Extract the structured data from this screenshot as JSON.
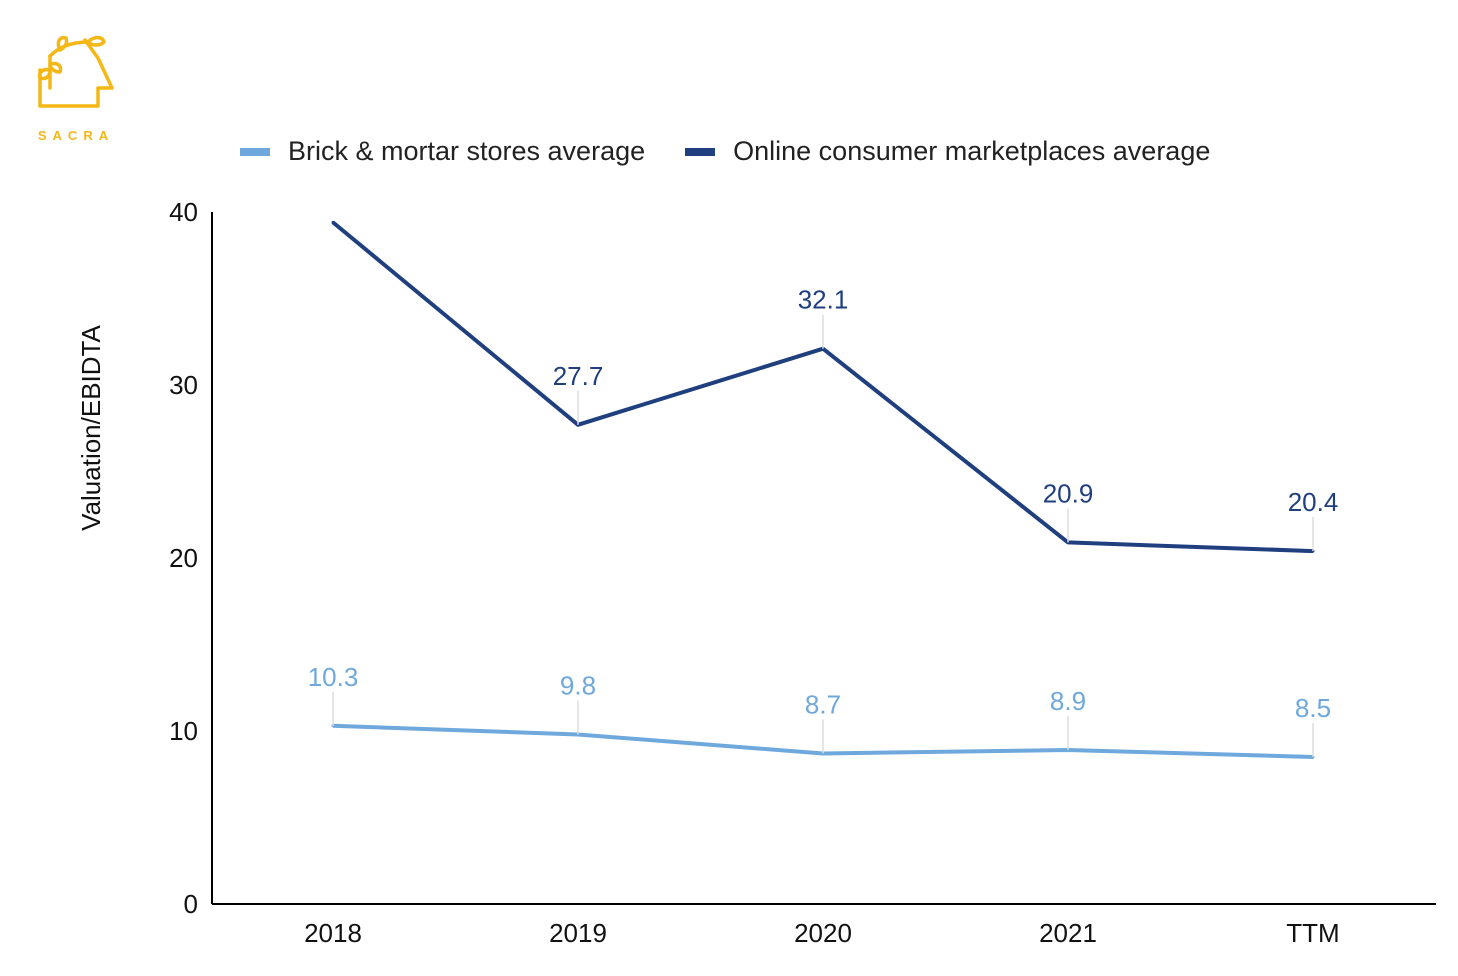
{
  "brand": {
    "name": "SACRA",
    "color": "#F5B715"
  },
  "chart_data": {
    "type": "line",
    "title": "",
    "xlabel": "",
    "ylabel": "Valuation/EBIDTA",
    "categories": [
      "2018",
      "2019",
      "2020",
      "2021",
      "TTM"
    ],
    "ylim": [
      0,
      40
    ],
    "yticks": [
      "0",
      "10",
      "20",
      "30",
      "40"
    ],
    "legend_position": "top",
    "series": [
      {
        "name": "Brick & mortar stores average",
        "color": "#6FA8DC",
        "values": [
          10.3,
          9.8,
          8.7,
          8.9,
          8.5
        ],
        "labels": [
          "10.3",
          "9.8",
          "8.7",
          "8.9",
          "8.5"
        ]
      },
      {
        "name": "Online consumer marketplaces average",
        "color": "#1F3F7F",
        "values": [
          39.4,
          27.7,
          32.1,
          20.9,
          20.4
        ],
        "labels": [
          "",
          "27.7",
          "32.1",
          "20.9",
          "20.4"
        ]
      }
    ]
  }
}
